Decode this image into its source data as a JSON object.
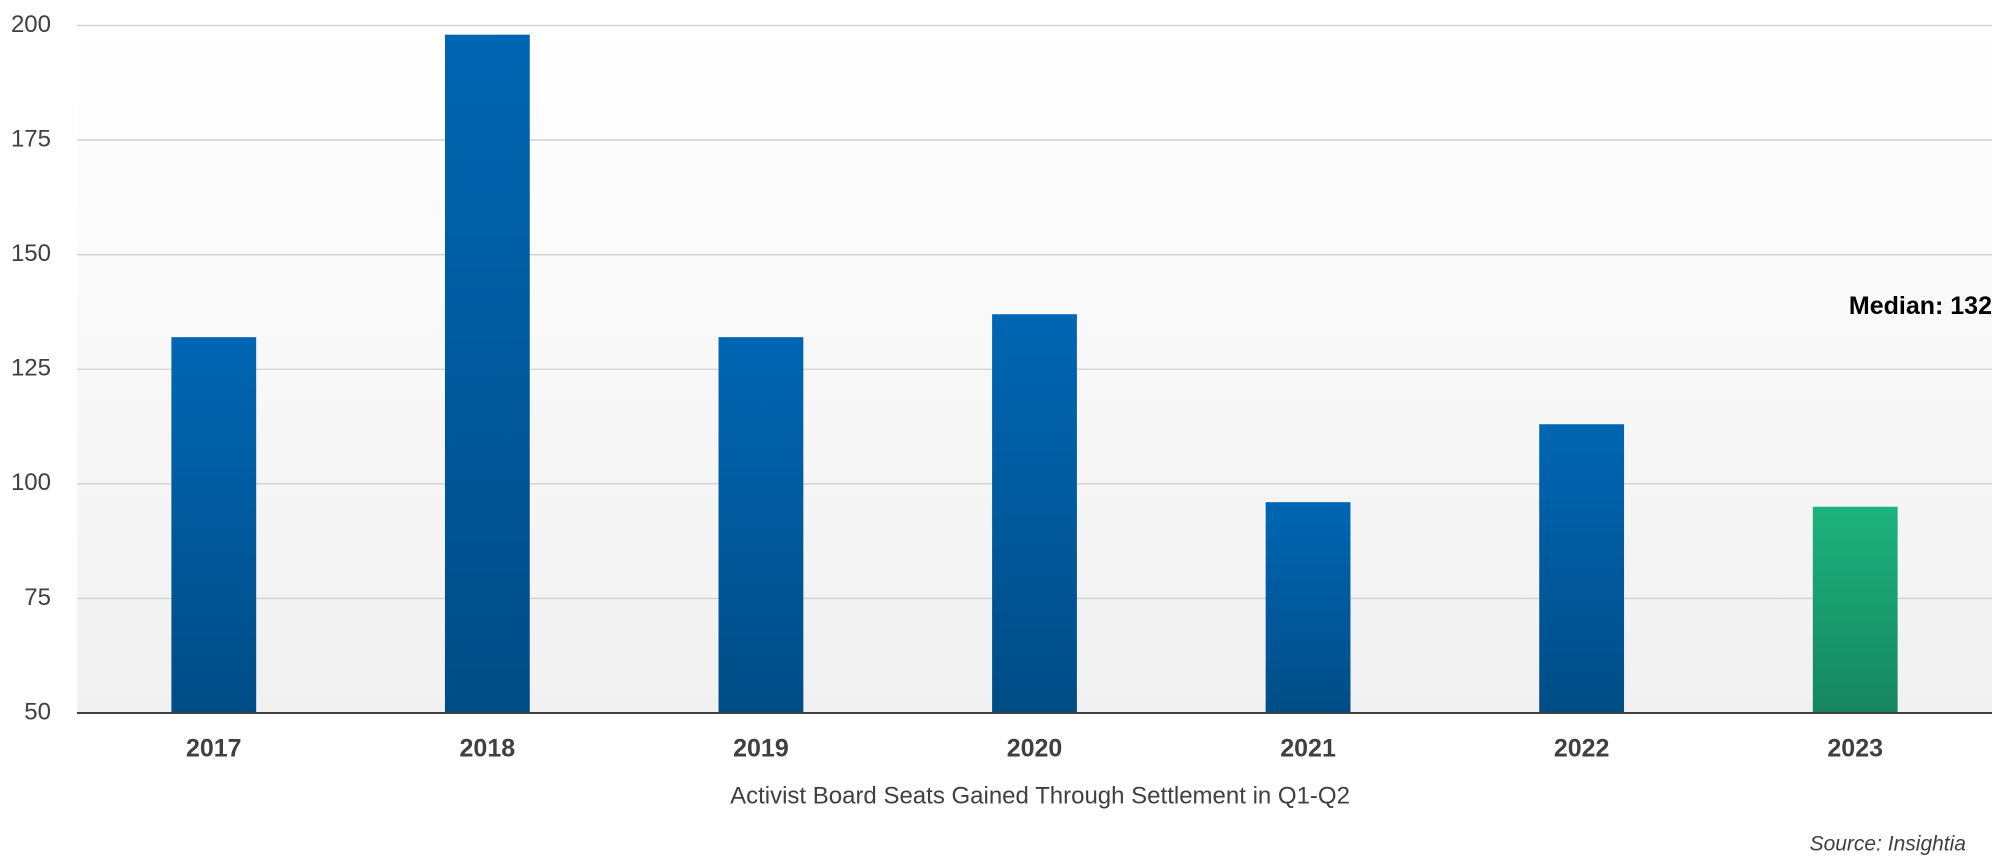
{
  "chart_data": {
    "type": "bar",
    "categories": [
      "2017",
      "2018",
      "2019",
      "2020",
      "2021",
      "2022",
      "2023"
    ],
    "values": [
      132,
      198,
      132,
      137,
      96,
      113,
      95
    ],
    "colors": [
      "#0066b3",
      "#0066b3",
      "#0066b3",
      "#0066b3",
      "#0066b3",
      "#0066b3",
      "#1cb37f"
    ],
    "ylim": [
      50,
      200
    ],
    "yticks": [
      50,
      75,
      100,
      125,
      150,
      175,
      200
    ],
    "grid": true,
    "x_axis_label": "Activist Board Seats Gained Through Settlement in Q1-Q2",
    "median": {
      "value": 132,
      "label": "Median: 132",
      "color": "#1dc2c9"
    },
    "source": "Source: Insightia"
  }
}
